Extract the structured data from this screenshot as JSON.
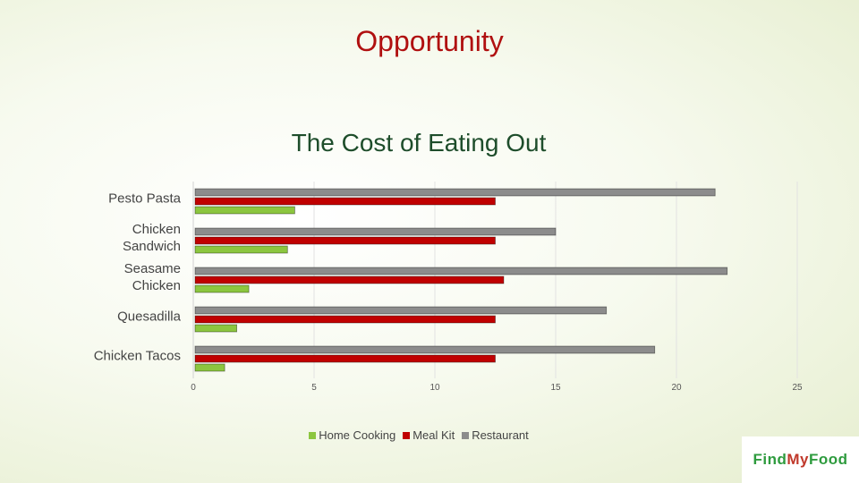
{
  "slide_title": "Opportunity",
  "logo": {
    "parts": [
      "Find",
      "My",
      "Food"
    ]
  },
  "chart_data": {
    "type": "hbar",
    "title": "The Cost of Eating Out",
    "categories": [
      "Pesto Pasta",
      "Chicken Sandwich",
      "Seasame Chicken",
      "Quesadilla",
      "Chicken Tacos"
    ],
    "series": [
      {
        "name": "Home Cooking",
        "color": "#8cc63f",
        "values": [
          4.2,
          3.9,
          2.3,
          1.8,
          1.3
        ]
      },
      {
        "name": "Meal Kit",
        "color": "#c00000",
        "values": [
          12.5,
          12.5,
          12.85,
          12.5,
          12.5
        ]
      },
      {
        "name": "Restaurant",
        "color": "#8c8c8c",
        "values": [
          21.6,
          15,
          22.1,
          17.1,
          19.1
        ]
      }
    ],
    "xlim": [
      0,
      25
    ],
    "xticks": [
      0,
      5,
      10,
      15,
      20,
      25
    ],
    "grid": true,
    "legend": "bottom"
  }
}
